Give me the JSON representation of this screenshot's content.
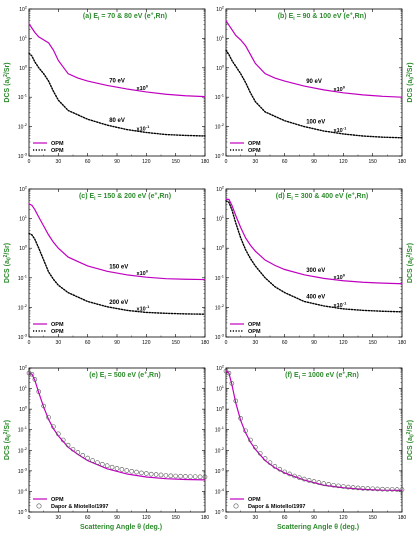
{
  "colors": {
    "opm": "#c000c0",
    "dot": "#000000",
    "label_green": "#2e8b2e",
    "background": "#ffffff"
  },
  "legend_labels": {
    "opm": "OPM",
    "dapor": "Dapor & Miotello/1997"
  },
  "axis_texts": {
    "ylabel_left": "DCS (a",
    "ylabel_right": "DCS (a",
    "xlabel": "Scattering Angle θ (deg.)"
  },
  "x_ticks": [
    "0",
    "30",
    "60",
    "90",
    "120",
    "150",
    "180"
  ],
  "chart_data": [
    {
      "type": "line",
      "title": "(a) E",
      "title_sub": "i",
      "title_rest": " = 70 & 80 eV (e",
      "title_sup": "+",
      "title_end": ",Rn)",
      "ylabel_side": "left",
      "xlim": [
        0,
        180
      ],
      "ylim_exp": [
        -3,
        2
      ],
      "ytick_labels": [
        "10^-3",
        "10^-2",
        "10^-1",
        "10^0",
        "10^1",
        "10^2"
      ],
      "series": [
        {
          "name": "OPM",
          "style": "solid",
          "note": "70 eV",
          "scale": "x10",
          "x": [
            0,
            3,
            6,
            10,
            15,
            20,
            25,
            30,
            40,
            50,
            60,
            80,
            100,
            120,
            140,
            160,
            180
          ],
          "y_log10": [
            1.5,
            1.35,
            1.2,
            1.05,
            0.95,
            0.85,
            0.6,
            0.25,
            -0.2,
            -0.35,
            -0.45,
            -0.6,
            -0.72,
            -0.82,
            -0.9,
            -0.95,
            -0.98
          ]
        },
        {
          "name": "OPM",
          "style": "dotted",
          "note": "80 eV",
          "scale": "x10",
          "x": [
            0,
            3,
            6,
            10,
            15,
            20,
            25,
            30,
            40,
            50,
            60,
            80,
            100,
            120,
            140,
            160,
            180
          ],
          "y_log10": [
            0.5,
            0.4,
            0.2,
            0.0,
            -0.2,
            -0.45,
            -0.8,
            -1.1,
            -1.45,
            -1.6,
            -1.75,
            -1.95,
            -2.1,
            -2.2,
            -2.27,
            -2.3,
            -2.32
          ]
        }
      ]
    },
    {
      "type": "line",
      "title": "(b) E",
      "title_sub": "i",
      "title_rest": " = 90 & 100 eV (e",
      "title_sup": "+",
      "title_end": ",Rn)",
      "ylabel_side": "right",
      "xlim": [
        0,
        180
      ],
      "ylim_exp": [
        -3,
        2
      ],
      "ytick_labels": [
        "10^-3",
        "10^-2",
        "10^-1",
        "10^0",
        "10^1",
        "10^2"
      ],
      "series": [
        {
          "name": "OPM",
          "style": "solid",
          "note": "90 eV",
          "scale": "x10",
          "x": [
            0,
            3,
            6,
            10,
            15,
            20,
            25,
            30,
            40,
            50,
            60,
            80,
            100,
            120,
            140,
            160,
            180
          ],
          "y_log10": [
            1.6,
            1.45,
            1.3,
            1.1,
            0.95,
            0.75,
            0.45,
            0.15,
            -0.2,
            -0.35,
            -0.45,
            -0.62,
            -0.75,
            -0.85,
            -0.92,
            -0.97,
            -1.0
          ]
        },
        {
          "name": "OPM",
          "style": "dotted",
          "note": "100 eV",
          "scale": "x10",
          "x": [
            0,
            3,
            6,
            10,
            15,
            20,
            25,
            30,
            40,
            50,
            60,
            80,
            100,
            120,
            140,
            160,
            180
          ],
          "y_log10": [
            0.6,
            0.45,
            0.25,
            0.05,
            -0.2,
            -0.5,
            -0.85,
            -1.15,
            -1.5,
            -1.65,
            -1.8,
            -2.0,
            -2.15,
            -2.25,
            -2.32,
            -2.36,
            -2.38
          ]
        }
      ]
    },
    {
      "type": "line",
      "title": "(c) E",
      "title_sub": "i",
      "title_rest": " = 150 & 200 eV (e",
      "title_sup": "+",
      "title_end": ",Rn)",
      "ylabel_side": "left",
      "xlim": [
        0,
        180
      ],
      "ylim_exp": [
        -3,
        2
      ],
      "ytick_labels": [
        "10^-3",
        "10^-2",
        "10^-1",
        "10^0",
        "10^1",
        "10^2"
      ],
      "series": [
        {
          "name": "OPM",
          "style": "solid",
          "note": "150 eV",
          "scale": "x10",
          "x": [
            0,
            3,
            6,
            10,
            15,
            20,
            25,
            30,
            40,
            50,
            60,
            80,
            100,
            120,
            140,
            160,
            180
          ],
          "y_log10": [
            1.5,
            1.45,
            1.3,
            1.05,
            0.75,
            0.45,
            0.2,
            0.0,
            -0.3,
            -0.45,
            -0.6,
            -0.78,
            -0.9,
            -0.98,
            -1.03,
            -1.05,
            -1.06
          ]
        },
        {
          "name": "OPM",
          "style": "dotted",
          "note": "200 eV",
          "scale": "x10",
          "x": [
            0,
            3,
            6,
            10,
            15,
            20,
            25,
            30,
            40,
            50,
            60,
            80,
            100,
            120,
            140,
            160,
            180
          ],
          "y_log10": [
            0.5,
            0.45,
            0.3,
            0.0,
            -0.4,
            -0.8,
            -1.05,
            -1.25,
            -1.5,
            -1.65,
            -1.8,
            -1.98,
            -2.1,
            -2.17,
            -2.2,
            -2.22,
            -2.23
          ]
        }
      ]
    },
    {
      "type": "line",
      "title": "(d) E",
      "title_sub": "i",
      "title_rest": " = 300 & 400 eV (e",
      "title_sup": "+",
      "title_end": ",Rn)",
      "ylabel_side": "right",
      "xlim": [
        0,
        180
      ],
      "ylim_exp": [
        -3,
        2
      ],
      "ytick_labels": [
        "10^-3",
        "10^-2",
        "10^-1",
        "10^0",
        "10^1",
        "10^2"
      ],
      "series": [
        {
          "name": "OPM",
          "style": "solid",
          "note": "300 eV",
          "scale": "x10",
          "x": [
            0,
            3,
            6,
            10,
            15,
            20,
            25,
            30,
            40,
            50,
            60,
            80,
            100,
            120,
            140,
            160,
            180
          ],
          "y_log10": [
            1.65,
            1.65,
            1.45,
            1.1,
            0.7,
            0.35,
            0.1,
            -0.1,
            -0.4,
            -0.58,
            -0.72,
            -0.9,
            -1.02,
            -1.1,
            -1.15,
            -1.18,
            -1.2
          ]
        },
        {
          "name": "OPM",
          "style": "dotted",
          "note": "400 eV",
          "scale": "x10",
          "x": [
            0,
            3,
            6,
            10,
            15,
            20,
            25,
            30,
            40,
            50,
            60,
            80,
            100,
            120,
            140,
            160,
            180
          ],
          "y_log10": [
            1.6,
            1.55,
            1.3,
            0.85,
            0.35,
            -0.05,
            -0.35,
            -0.6,
            -1.0,
            -1.3,
            -1.5,
            -1.8,
            -1.95,
            -2.05,
            -2.1,
            -2.13,
            -2.15
          ]
        }
      ]
    },
    {
      "type": "line",
      "title": "(e) E",
      "title_sub": "i",
      "title_rest": " = 500 eV (e",
      "title_sup": "+",
      "title_end": ",Rn)",
      "ylabel_side": "left",
      "xlim": [
        0,
        180
      ],
      "ylim_exp": [
        -5,
        2
      ],
      "ytick_labels": [
        "10^-5",
        "10^-4",
        "10^-3",
        "10^-2",
        "10^-1",
        "10^0",
        "10^1",
        "10^2"
      ],
      "series": [
        {
          "name": "OPM",
          "style": "solid",
          "x": [
            0,
            3,
            6,
            10,
            15,
            20,
            25,
            30,
            40,
            50,
            60,
            80,
            100,
            120,
            140,
            160,
            180
          ],
          "y_log10": [
            1.75,
            1.7,
            1.4,
            0.8,
            0.1,
            -0.5,
            -0.95,
            -1.3,
            -1.85,
            -2.2,
            -2.5,
            -2.9,
            -3.15,
            -3.3,
            -3.38,
            -3.42,
            -3.44
          ]
        },
        {
          "name": "Dapor & Miotello/1997",
          "style": "circle",
          "x": [
            0,
            3,
            6,
            10,
            15,
            20,
            25,
            30,
            35,
            40,
            45,
            50,
            55,
            60,
            65,
            70,
            75,
            80,
            85,
            90,
            95,
            100,
            105,
            110,
            115,
            120,
            125,
            130,
            135,
            140,
            145,
            150,
            155,
            160,
            165,
            170,
            175,
            180
          ],
          "y_log10": [
            1.75,
            1.7,
            1.45,
            0.85,
            0.15,
            -0.4,
            -0.85,
            -1.2,
            -1.5,
            -1.75,
            -1.95,
            -2.1,
            -2.25,
            -2.38,
            -2.5,
            -2.6,
            -2.68,
            -2.75,
            -2.82,
            -2.88,
            -2.93,
            -2.98,
            -3.02,
            -3.06,
            -3.1,
            -3.13,
            -3.16,
            -3.18,
            -3.2,
            -3.22,
            -3.24,
            -3.25,
            -3.26,
            -3.27,
            -3.28,
            -3.28,
            -3.29,
            -3.29
          ]
        }
      ]
    },
    {
      "type": "line",
      "title": "(f) E",
      "title_sub": "i",
      "title_rest": " = 1000 eV (e",
      "title_sup": "+",
      "title_end": ",Rn)",
      "ylabel_side": "right",
      "xlim": [
        0,
        180
      ],
      "ylim_exp": [
        -5,
        2
      ],
      "ytick_labels": [
        "10^-5",
        "10^-4",
        "10^-3",
        "10^-2",
        "10^-1",
        "10^0",
        "10^1",
        "10^2"
      ],
      "series": [
        {
          "name": "OPM",
          "style": "solid",
          "x": [
            0,
            3,
            6,
            10,
            15,
            20,
            25,
            30,
            40,
            50,
            60,
            80,
            100,
            120,
            140,
            160,
            180
          ],
          "y_log10": [
            1.85,
            1.75,
            1.2,
            0.3,
            -0.55,
            -1.15,
            -1.6,
            -1.95,
            -2.5,
            -2.85,
            -3.1,
            -3.45,
            -3.7,
            -3.82,
            -3.9,
            -3.94,
            -3.95
          ]
        },
        {
          "name": "Dapor & Miotello/1997",
          "style": "circle",
          "x": [
            0,
            3,
            6,
            10,
            15,
            20,
            25,
            30,
            35,
            40,
            45,
            50,
            55,
            60,
            65,
            70,
            75,
            80,
            85,
            90,
            95,
            100,
            105,
            110,
            115,
            120,
            125,
            130,
            135,
            140,
            145,
            150,
            155,
            160,
            165,
            170,
            175,
            180
          ],
          "y_log10": [
            1.85,
            1.75,
            1.25,
            0.4,
            -0.45,
            -1.05,
            -1.5,
            -1.85,
            -2.15,
            -2.4,
            -2.6,
            -2.78,
            -2.92,
            -3.05,
            -3.15,
            -3.25,
            -3.33,
            -3.4,
            -3.46,
            -3.52,
            -3.57,
            -3.62,
            -3.66,
            -3.7,
            -3.73,
            -3.76,
            -3.79,
            -3.81,
            -3.83,
            -3.85,
            -3.86,
            -3.87,
            -3.88,
            -3.89,
            -3.9,
            -3.9,
            -3.91,
            -3.91
          ]
        }
      ]
    }
  ]
}
